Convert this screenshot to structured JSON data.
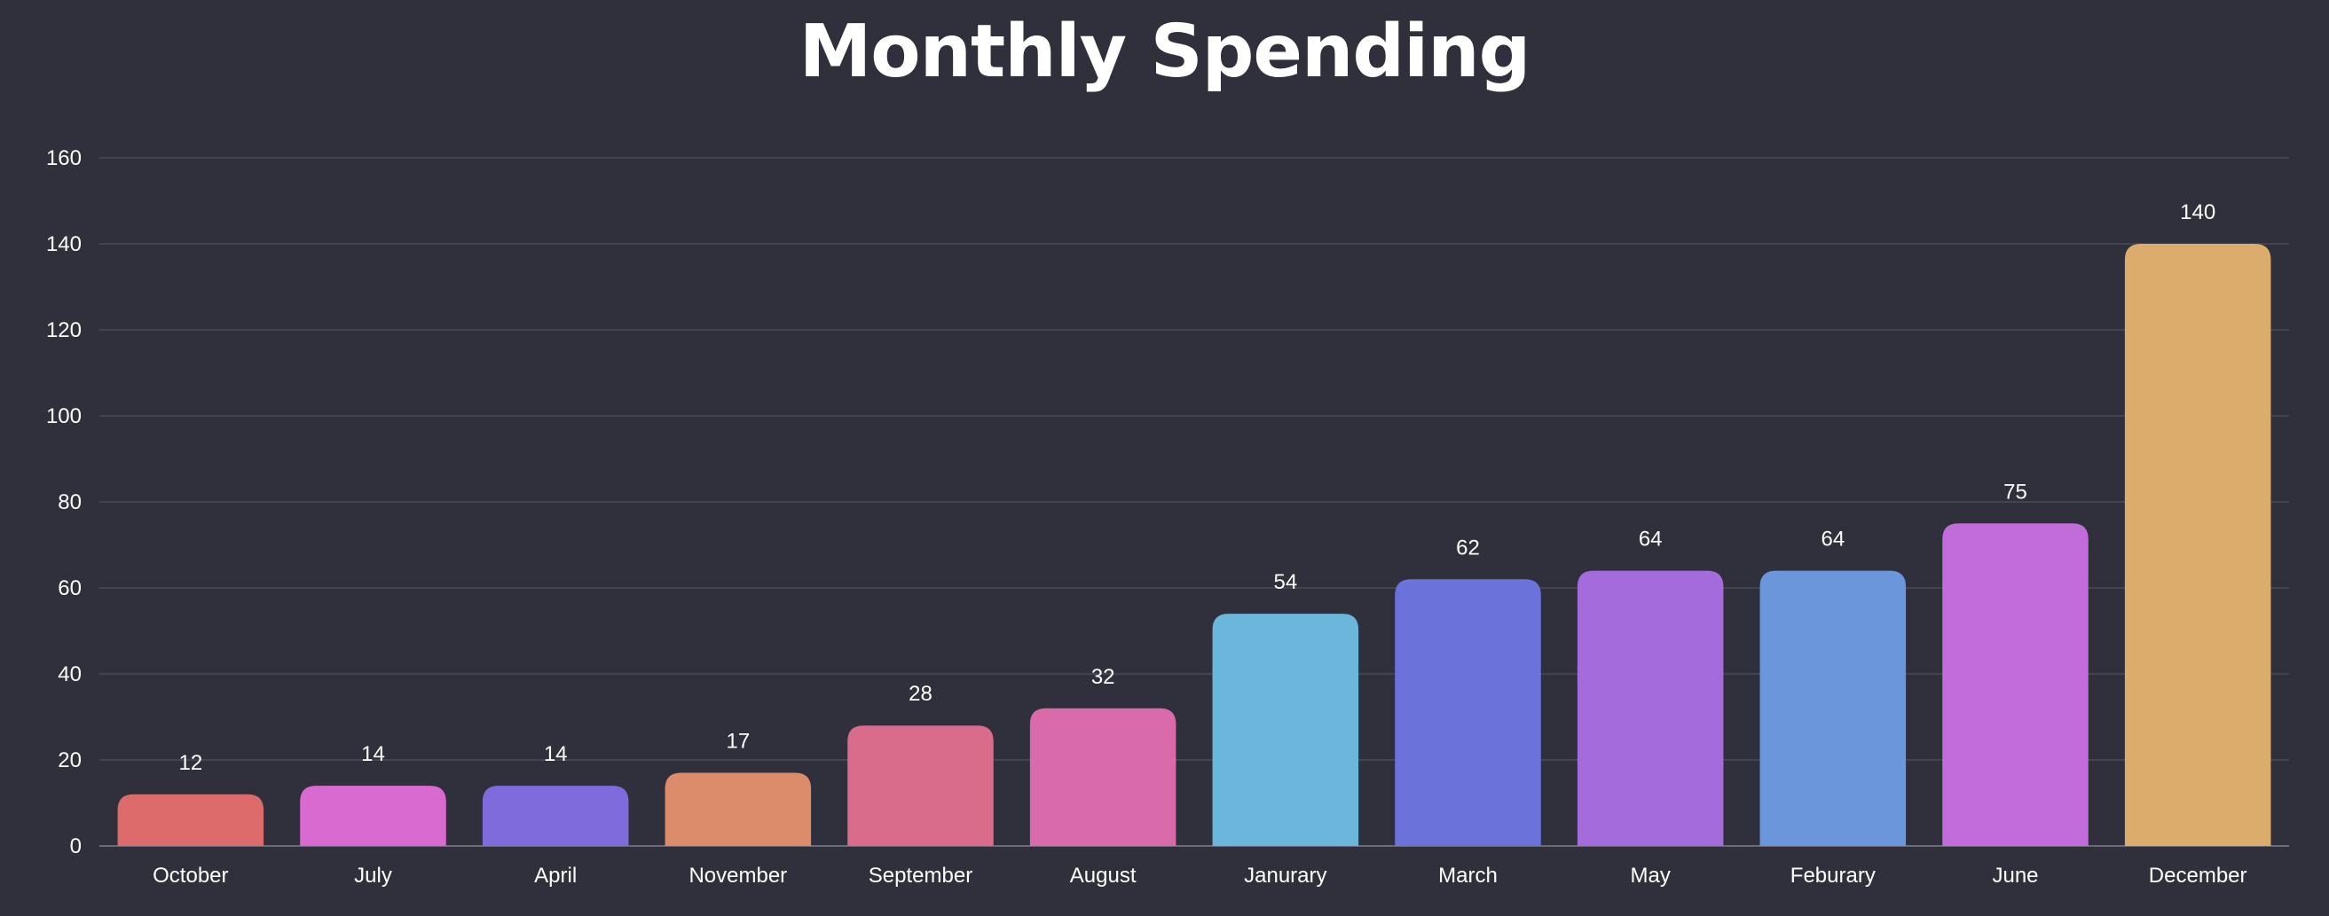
{
  "chart_data": {
    "type": "bar",
    "title": "Monthly Spending",
    "xlabel": "",
    "ylabel": "",
    "categories": [
      "October",
      "July",
      "April",
      "November",
      "September",
      "August",
      "Janurary",
      "March",
      "May",
      "Feburary",
      "June",
      "December"
    ],
    "values": [
      12,
      14,
      14,
      17,
      28,
      32,
      54,
      62,
      64,
      64,
      75,
      140
    ],
    "colors": [
      "#dd6b6b",
      "#d96bd0",
      "#7f6bdb",
      "#dd8c6b",
      "#d96b8b",
      "#d96bab",
      "#6bb6db",
      "#6b73db",
      "#a36bdb",
      "#6b96db",
      "#c26bdb",
      "#dbac6b"
    ],
    "ylim": [
      0,
      160
    ],
    "yticks": [
      0,
      20,
      40,
      60,
      80,
      100,
      120,
      140,
      160
    ],
    "grid": true,
    "legend": "none",
    "data_labels": true
  }
}
